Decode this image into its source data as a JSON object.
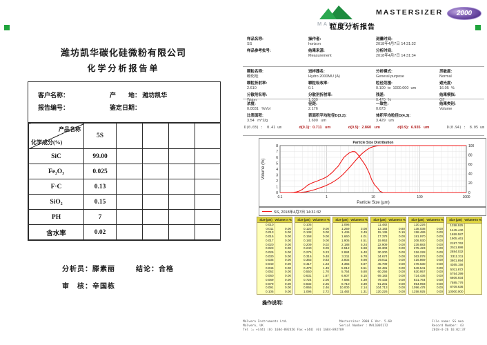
{
  "left_report": {
    "company": "潍坊凯华碳化硅微粉有限公司",
    "title": "化学分析报告单",
    "info": {
      "customer_label": "客户名称：",
      "origin_label": "产　　地：",
      "origin_value": "潍坊凯华",
      "report_no_label": "报告编号：",
      "date_label": "鉴定日期："
    },
    "table": {
      "corner_top": "产品名称",
      "corner_bottom": "化学成分(%)",
      "sample_col": "5S",
      "empty_cols": 4,
      "rows": [
        {
          "name": "SiC",
          "value": "99.00"
        },
        {
          "name": "Fe₂O₃",
          "value": "0.025"
        },
        {
          "name": "F·C",
          "value": "0.13"
        },
        {
          "name": "SiO₂",
          "value": "0.15"
        },
        {
          "name": "PH",
          "value": "7"
        },
        {
          "name": "含水率",
          "value": "0.02"
        }
      ]
    },
    "footer": {
      "analyst_label": "分析员：",
      "analyst": "滕素丽",
      "conclusion_label": "结论：",
      "conclusion": "合格",
      "reviewer_label": "审　核：",
      "reviewer": "辛国栋"
    }
  },
  "right_report": {
    "brand": {
      "malvern": "MALVERN",
      "product": "MASTERSIZER",
      "model": "2000",
      "title": "粒度分析报告"
    },
    "meta": [
      [
        {
          "label": "样品名称:",
          "value": "SS"
        },
        {
          "label": "操作者:",
          "value": "horizon"
        },
        {
          "label": "测量时间:",
          "value": "2018年4月7日 14:31:32"
        }
      ],
      [
        {
          "label": "样品参考批号:",
          "value": ""
        },
        {
          "label": "结果来源:",
          "value": "Measurement"
        },
        {
          "label": "分析时间:",
          "value": "2018年4月7日 14:31:34"
        }
      ]
    ],
    "params": [
      [
        {
          "label": "颗粒名称:",
          "value": "碳化硅"
        },
        {
          "label": "进样器名:",
          "value": "Hydro 2000MU (A)"
        },
        {
          "label": "分析模式:",
          "value": "General purpose"
        },
        {
          "label": "灵敏度:",
          "value": "Normal"
        }
      ],
      [
        {
          "label": "颗粒折射率:",
          "value": "2.610"
        },
        {
          "label": "颗粒吸收率:",
          "value": "0.1"
        },
        {
          "label": "粒径范围:",
          "value": "0.100  to  1000.000  um"
        },
        {
          "label": "遮光度:",
          "value": "16.05  %"
        }
      ],
      [
        {
          "label": "分散剂名称:",
          "value": "Water"
        },
        {
          "label": "分散剂折射率:",
          "value": "1.330"
        },
        {
          "label": "残差:",
          "value": "0.470  %"
        },
        {
          "label": "结果模拟:",
          "value": "Off"
        }
      ]
    ],
    "results": [
      [
        {
          "label": "浓度:",
          "value": "0.0031   %Vol"
        },
        {
          "label": "径距:",
          "value": "2.176"
        },
        {
          "label": "一致性:",
          "value": "0.673"
        },
        {
          "label": "结果类别:",
          "value": "Volume"
        }
      ],
      [
        {
          "label": "比表面积:",
          "value": "3.54   m^2/g"
        },
        {
          "label": "表面积平均粒径D(3,2):",
          "value": "1.690   um"
        },
        {
          "label": "体积平均粒径D(4,3):",
          "value": "3.429   um"
        },
        {
          "label": "",
          "value": ""
        }
      ]
    ],
    "d_values": [
      {
        "type": "plain",
        "text": "D(0.03) :  0.41 um"
      },
      {
        "type": "red",
        "label": "d(0.1):  ",
        "value": "0.711",
        "unit": "   um"
      },
      {
        "type": "red",
        "label": "d(0.5):  ",
        "value": "2.860",
        "unit": "   um"
      },
      {
        "type": "red",
        "label": "d(0.9):  ",
        "value": "6.935",
        "unit": "   um"
      },
      {
        "type": "plain",
        "text": "D(0.94) :  8.05 um"
      }
    ],
    "psd_table_headers": [
      "Size (µm)",
      "Volume In %"
    ],
    "psd_tables": [
      {
        "sizes": [
          "0.010",
          "0.011",
          "0.013",
          "0.015",
          "0.017",
          "0.020",
          "0.023",
          "0.026",
          "0.030",
          "0.035",
          "0.040",
          "0.046",
          "0.052",
          "0.060",
          "0.069",
          "0.079",
          "0.091",
          "0.105"
        ],
        "vols": [
          "0.00",
          "0.00",
          "0.00",
          "0.00",
          "0.00",
          "0.00",
          "0.00",
          "0.00",
          "0.00",
          "0.00",
          "0.00",
          "0.00",
          "0.00",
          "0.00",
          "0.00",
          "0.00",
          "0.00"
        ]
      },
      {
        "sizes": [
          "0.105",
          "0.120",
          "0.138",
          "0.158",
          "0.182",
          "0.209",
          "0.240",
          "0.275",
          "0.316",
          "0.363",
          "0.417",
          "0.479",
          "0.550",
          "0.631",
          "0.724",
          "0.832",
          "0.955",
          "1.096"
        ],
        "vols": [
          "0.00",
          "0.00",
          "0.00",
          "0.00",
          "0.02",
          "0.09",
          "0.23",
          "0.48",
          "0.83",
          "1.23",
          "1.49",
          "1.70",
          "1.87",
          "2.06",
          "2.25",
          "2.46",
          "2.72"
        ]
      },
      {
        "sizes": [
          "1.096",
          "1.259",
          "1.445",
          "1.660",
          "1.905",
          "2.188",
          "2.512",
          "2.884",
          "3.311",
          "3.802",
          "4.365",
          "5.012",
          "5.754",
          "6.607",
          "7.586",
          "8.710",
          "10.000",
          "11.482"
        ],
        "vols": [
          "3.08",
          "3.49",
          "4.01",
          "4.51",
          "5.24",
          "5.98",
          "6.40",
          "6.78",
          "6.98",
          "6.97",
          "6.51",
          "5.80",
          "5.15",
          "4.39",
          "3.39",
          "2.14",
          "1.31"
        ]
      },
      {
        "sizes": [
          "11.482",
          "13.183",
          "15.136",
          "17.378",
          "19.953",
          "22.909",
          "26.303",
          "30.200",
          "34.674",
          "39.811",
          "45.709",
          "52.481",
          "60.256",
          "69.183",
          "79.433",
          "91.201",
          "104.713",
          "120.226"
        ],
        "vols": [
          "0.80",
          "0.19",
          "0.00",
          "0.00",
          "0.00",
          "0.00",
          "0.00",
          "0.00",
          "0.00",
          "0.00",
          "0.00",
          "0.00",
          "0.00",
          "0.00",
          "0.00",
          "0.00",
          "0.00"
        ]
      },
      {
        "sizes": [
          "120.226",
          "138.038",
          "158.489",
          "181.970",
          "208.930",
          "239.883",
          "275.423",
          "316.228",
          "363.078",
          "416.869",
          "478.630",
          "549.541",
          "630.957",
          "724.436",
          "831.764",
          "954.993",
          "1096.478",
          "1258.925"
        ],
        "vols": [
          "0.00",
          "0.00",
          "0.00",
          "0.00",
          "0.00",
          "0.00",
          "0.00",
          "0.00",
          "0.00",
          "0.00",
          "0.00",
          "0.00",
          "0.00",
          "0.00",
          "0.00",
          "0.00",
          "0.00"
        ]
      },
      {
        "sizes": [
          "1258.925",
          "1445.440",
          "1659.587",
          "1905.461",
          "2187.762",
          "2511.886",
          "2884.032",
          "3311.311",
          "3801.894",
          "4365.158",
          "5011.872",
          "5754.399",
          "6606.934",
          "7585.776",
          "8709.636",
          "10000.000"
        ],
        "vols": []
      }
    ],
    "operator_note_label": "操作说明:",
    "footer": {
      "left": [
        "Malvern Instruments Ltd.",
        "Malvern, UK",
        "Tel := +[44] (0) 1684-892456 Fax +[44] (0) 1684-892789"
      ],
      "center": [
        "Mastersizer 2000 E Ver. 5.60",
        "Serial Number : MAL1005172"
      ],
      "right": [
        "File name: SS.mea",
        "Record Number: 43",
        "2018-4-26 16:02:37"
      ]
    }
  },
  "chart_data": {
    "type": "line",
    "title": "Particle Size Distribution",
    "xlabel": "Particle Size (µm)",
    "ylabel": "Volume (%)",
    "x_scale": "log",
    "xlim": [
      0.1,
      1000
    ],
    "ylim_left": [
      0,
      8
    ],
    "ylim_right": [
      0,
      100
    ],
    "x_ticks": [
      "0.1",
      "1",
      "10",
      "100",
      "1000"
    ],
    "y_ticks_left": [
      0,
      1,
      2,
      3,
      4,
      5,
      6,
      7,
      8
    ],
    "y_ticks_right": [
      0,
      20,
      40,
      60,
      80,
      100
    ],
    "legend": "SS, 2018年4月7日 14:31:32",
    "series_names": [
      "volume_frequency",
      "cumulative_undersize"
    ],
    "line_color": "#f01818",
    "band_boundaries_um": [
      0.01,
      0.011,
      0.013,
      0.015,
      0.017,
      0.02,
      0.023,
      0.026,
      0.03,
      0.035,
      0.04,
      0.046,
      0.052,
      0.06,
      0.069,
      0.079,
      0.091,
      0.105,
      0.12,
      0.138,
      0.158,
      0.182,
      0.209,
      0.24,
      0.275,
      0.316,
      0.363,
      0.417,
      0.479,
      0.55,
      0.631,
      0.724,
      0.832,
      0.955,
      1.096,
      1.259,
      1.445,
      1.66,
      1.905,
      2.188,
      2.512,
      2.884,
      3.311,
      3.802,
      4.365,
      5.012,
      5.754,
      6.607,
      7.586,
      8.71,
      10.0,
      11.482,
      13.183,
      15.136,
      17.378,
      19.953,
      22.909,
      26.303,
      30.2,
      34.674,
      39.811,
      45.709,
      52.481,
      60.256,
      69.183,
      79.433,
      91.201,
      104.713,
      120.226,
      138.038,
      158.489,
      181.97,
      208.93,
      239.883,
      275.423,
      316.228,
      363.078,
      416.869,
      478.63,
      549.541,
      630.957,
      724.436,
      831.764,
      954.993,
      1096.478,
      1258.925,
      1445.44,
      1659.587,
      1905.461,
      2187.762,
      2511.886,
      2884.032,
      3311.311,
      3801.894,
      4365.158,
      5011.872,
      5754.399,
      6606.934,
      7585.776,
      8709.636,
      10000.0
    ],
    "volume_in_band_percent": [
      0,
      0,
      0,
      0,
      0,
      0,
      0,
      0,
      0,
      0,
      0,
      0,
      0,
      0,
      0,
      0,
      0,
      0,
      0,
      0,
      0,
      0.02,
      0.09,
      0.23,
      0.48,
      0.83,
      1.23,
      1.49,
      1.7,
      1.87,
      2.06,
      2.25,
      2.46,
      2.72,
      3.08,
      3.49,
      4.01,
      4.51,
      5.24,
      5.98,
      6.4,
      6.78,
      6.98,
      6.97,
      6.51,
      5.8,
      5.15,
      4.39,
      3.39,
      2.14,
      1.31,
      0.8,
      0.19,
      0,
      0,
      0,
      0,
      0,
      0,
      0,
      0,
      0,
      0,
      0,
      0,
      0,
      0,
      0,
      0,
      0,
      0,
      0,
      0,
      0,
      0,
      0,
      0,
      0,
      0,
      0,
      0,
      0,
      0,
      0,
      0,
      0,
      0,
      0,
      0,
      0,
      0,
      0,
      0,
      0,
      0,
      0,
      0,
      0,
      0,
      0
    ]
  }
}
